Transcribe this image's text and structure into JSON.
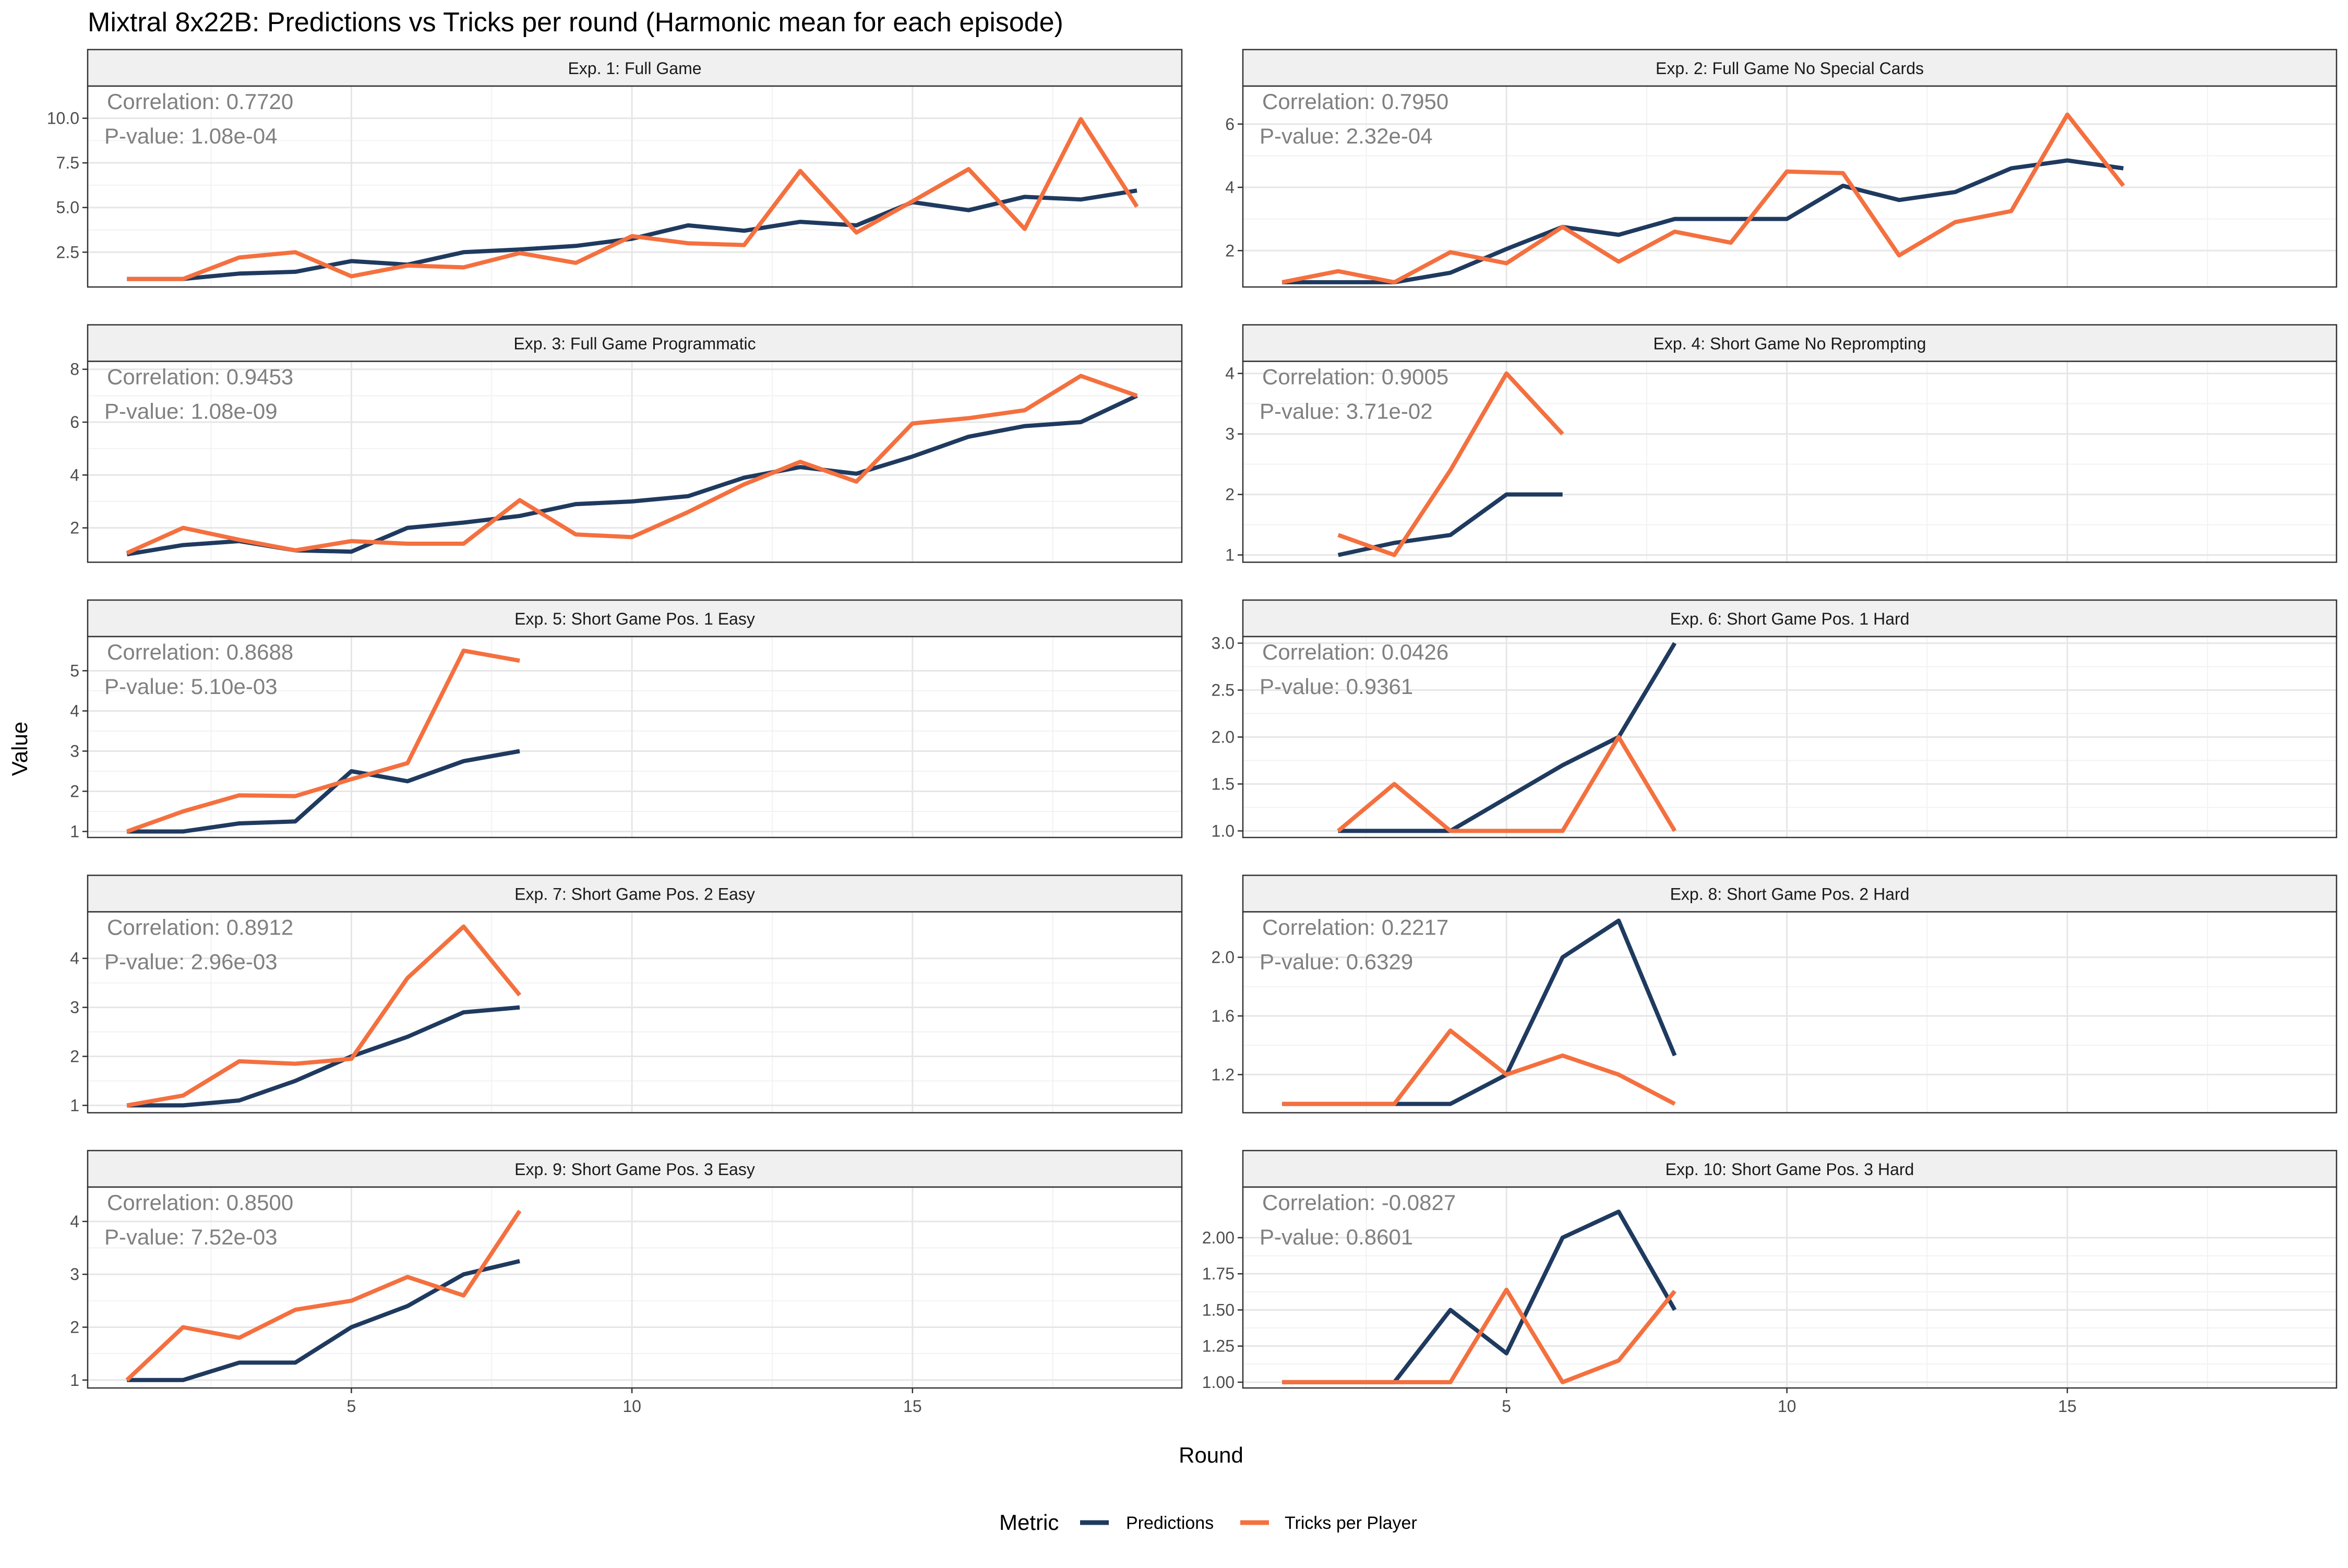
{
  "title": "Mixtral 8x22B: Predictions vs Tricks per round (Harmonic mean for each episode)",
  "x_axis_label": "Round",
  "y_axis_label": "Value",
  "legend": {
    "title": "Metric",
    "items": [
      {
        "name": "Predictions",
        "color": "#1f3a5f"
      },
      {
        "name": "Tricks per Player",
        "color": "#f4703f"
      }
    ]
  },
  "chart_data": {
    "type": "line",
    "title": "Mixtral 8x22B: Predictions vs Tricks per round (Harmonic mean for each episode)",
    "xlabel": "Round",
    "ylabel": "Value",
    "xlim": [
      0.3,
      19.8
    ],
    "x_ticks": [
      5,
      10,
      15
    ],
    "grid": true,
    "legend_position": "bottom",
    "facets": [
      {
        "label": "Exp. 1: Full Game",
        "correlation": "Correlation: 0.7720",
        "p_value": "P-value: 1.08e-04",
        "ylim": [
          0.55,
          11.8
        ],
        "y_ticks": [
          2.5,
          5.0,
          7.5,
          10.0
        ],
        "y_tick_labels": [
          "2.5",
          "5.0",
          "7.5",
          "10.0"
        ],
        "x": [
          1,
          2,
          3,
          4,
          5,
          6,
          7,
          8,
          9,
          10,
          11,
          12,
          13,
          14,
          15,
          16,
          17,
          18,
          19
        ],
        "series": [
          {
            "name": "Predictions",
            "values": [
              1.0,
              1.0,
              1.3,
              1.4,
              2.0,
              1.8,
              2.5,
              2.65,
              2.85,
              3.25,
              4.0,
              3.7,
              4.2,
              4.0,
              5.3,
              4.85,
              5.6,
              5.45,
              5.95
            ]
          },
          {
            "name": "Tricks per Player",
            "values": [
              1.0,
              1.0,
              2.2,
              2.5,
              1.15,
              1.75,
              1.65,
              2.45,
              1.9,
              3.4,
              3.0,
              2.9,
              7.05,
              3.6,
              5.35,
              7.15,
              3.8,
              9.95,
              5.05
            ]
          }
        ]
      },
      {
        "label": "Exp. 2: Full Game No Special Cards",
        "correlation": "Correlation: 0.7950",
        "p_value": "P-value: 2.32e-04",
        "ylim": [
          0.85,
          7.2
        ],
        "y_ticks": [
          2,
          4,
          6
        ],
        "y_tick_labels": [
          "2",
          "4",
          "6"
        ],
        "x": [
          1,
          2,
          3,
          4,
          5,
          6,
          7,
          8,
          9,
          10,
          11,
          12,
          13,
          14,
          15,
          16
        ],
        "series": [
          {
            "name": "Predictions",
            "values": [
              1.0,
              1.0,
              1.0,
              1.3,
              2.05,
              2.75,
              2.5,
              3.0,
              3.0,
              3.0,
              4.05,
              3.6,
              3.85,
              4.6,
              4.85,
              4.6
            ]
          },
          {
            "name": "Tricks per Player",
            "values": [
              1.0,
              1.35,
              1.0,
              1.95,
              1.6,
              2.75,
              1.65,
              2.6,
              2.25,
              4.5,
              4.45,
              1.85,
              2.9,
              3.25,
              6.3,
              4.05
            ]
          }
        ]
      },
      {
        "label": "Exp. 3: Full Game Programmatic",
        "correlation": "Correlation: 0.9453",
        "p_value": "P-value: 1.08e-09",
        "ylim": [
          0.7,
          8.3
        ],
        "y_ticks": [
          2,
          4,
          6,
          8
        ],
        "y_tick_labels": [
          "2",
          "4",
          "6",
          "8"
        ],
        "x": [
          1,
          2,
          3,
          4,
          5,
          6,
          7,
          8,
          9,
          10,
          11,
          12,
          13,
          14,
          15,
          16,
          17,
          18,
          19
        ],
        "series": [
          {
            "name": "Predictions",
            "values": [
              1.0,
              1.35,
              1.5,
              1.15,
              1.1,
              2.0,
              2.2,
              2.45,
              2.9,
              3.0,
              3.2,
              3.9,
              4.3,
              4.05,
              4.7,
              5.45,
              5.85,
              6.0,
              7.0
            ]
          },
          {
            "name": "Tricks per Player",
            "values": [
              1.05,
              2.0,
              1.55,
              1.15,
              1.5,
              1.4,
              1.4,
              3.05,
              1.75,
              1.65,
              2.6,
              3.65,
              4.5,
              3.75,
              5.95,
              6.15,
              6.45,
              7.75,
              7.0
            ]
          }
        ]
      },
      {
        "label": "Exp. 4: Short Game No Reprompting",
        "correlation": "Correlation: 0.9005",
        "p_value": "P-value: 3.71e-02",
        "ylim": [
          0.88,
          4.2
        ],
        "y_ticks": [
          1,
          2,
          3,
          4
        ],
        "y_tick_labels": [
          "1",
          "2",
          "3",
          "4"
        ],
        "x": [
          2,
          3,
          4,
          5,
          6
        ],
        "series": [
          {
            "name": "Predictions",
            "values": [
              1.0,
              1.2,
              1.33,
              2.0,
              2.0
            ]
          },
          {
            "name": "Tricks per Player",
            "values": [
              1.33,
              1.0,
              2.4,
              4.0,
              3.0
            ]
          }
        ]
      },
      {
        "label": "Exp. 5: Short Game Pos. 1 Easy",
        "correlation": "Correlation: 0.8688",
        "p_value": "P-value: 5.10e-03",
        "ylim": [
          0.85,
          5.85
        ],
        "y_ticks": [
          1,
          2,
          3,
          4,
          5
        ],
        "y_tick_labels": [
          "1",
          "2",
          "3",
          "4",
          "5"
        ],
        "x": [
          1,
          2,
          3,
          4,
          5,
          6,
          7,
          8
        ],
        "series": [
          {
            "name": "Predictions",
            "values": [
              1.0,
              1.0,
              1.2,
              1.25,
              2.5,
              2.25,
              2.75,
              3.0
            ]
          },
          {
            "name": "Tricks per Player",
            "values": [
              1.0,
              1.5,
              1.9,
              1.88,
              2.3,
              2.7,
              5.5,
              5.25
            ]
          }
        ]
      },
      {
        "label": "Exp. 6: Short Game Pos. 1 Hard",
        "correlation": "Correlation: 0.0426",
        "p_value": "P-value: 0.9361",
        "ylim": [
          0.93,
          3.07
        ],
        "y_ticks": [
          1.0,
          1.5,
          2.0,
          2.5,
          3.0
        ],
        "y_tick_labels": [
          "1.0",
          "1.5",
          "2.0",
          "2.5",
          "3.0"
        ],
        "x": [
          2,
          3,
          4,
          5,
          6,
          7,
          8
        ],
        "series": [
          {
            "name": "Predictions",
            "values": [
              1.0,
              1.0,
              1.0,
              1.35,
              1.7,
              2.0,
              3.0
            ]
          },
          {
            "name": "Tricks per Player",
            "values": [
              1.0,
              1.5,
              1.0,
              1.0,
              1.0,
              2.0,
              1.0
            ]
          }
        ]
      },
      {
        "label": "Exp. 7: Short Game Pos. 2 Easy",
        "correlation": "Correlation: 0.8912",
        "p_value": "P-value: 2.96e-03",
        "ylim": [
          0.85,
          4.95
        ],
        "y_ticks": [
          1,
          2,
          3,
          4
        ],
        "y_tick_labels": [
          "1",
          "2",
          "3",
          "4"
        ],
        "x": [
          1,
          2,
          3,
          4,
          5,
          6,
          7,
          8
        ],
        "series": [
          {
            "name": "Predictions",
            "values": [
              1.0,
              1.0,
              1.1,
              1.5,
              2.0,
              2.4,
              2.9,
              3.0
            ]
          },
          {
            "name": "Tricks per Player",
            "values": [
              1.0,
              1.2,
              1.9,
              1.85,
              1.95,
              3.6,
              4.65,
              3.25
            ]
          }
        ]
      },
      {
        "label": "Exp. 8: Short Game Pos. 2 Hard",
        "correlation": "Correlation: 0.2217",
        "p_value": "P-value: 0.6329",
        "ylim": [
          0.94,
          2.31
        ],
        "y_ticks": [
          1.2,
          1.6,
          2.0
        ],
        "y_tick_labels": [
          "1.2",
          "1.6",
          "2.0"
        ],
        "x": [
          1,
          2,
          3,
          4,
          5,
          6,
          7,
          8
        ],
        "series": [
          {
            "name": "Predictions",
            "values": [
              1.0,
              1.0,
              1.0,
              1.0,
              1.2,
              2.0,
              2.25,
              1.33
            ]
          },
          {
            "name": "Tricks per Player",
            "values": [
              1.0,
              1.0,
              1.0,
              1.5,
              1.2,
              1.33,
              1.2,
              1.0
            ]
          }
        ]
      },
      {
        "label": "Exp. 9: Short Game Pos. 3 Easy",
        "correlation": "Correlation: 0.8500",
        "p_value": "P-value: 7.52e-03",
        "ylim": [
          0.85,
          4.65
        ],
        "y_ticks": [
          1,
          2,
          3,
          4
        ],
        "y_tick_labels": [
          "1",
          "2",
          "3",
          "4"
        ],
        "x": [
          1,
          2,
          3,
          4,
          5,
          6,
          7,
          8
        ],
        "series": [
          {
            "name": "Predictions",
            "values": [
              1.0,
              1.0,
              1.33,
              1.33,
              2.0,
              2.4,
              3.0,
              3.25
            ]
          },
          {
            "name": "Tricks per Player",
            "values": [
              1.0,
              2.0,
              1.8,
              2.33,
              2.5,
              2.95,
              2.6,
              4.2
            ]
          }
        ]
      },
      {
        "label": "Exp. 10: Short Game Pos. 3 Hard",
        "correlation": "Correlation: -0.0827",
        "p_value": "P-value: 0.8601",
        "ylim": [
          0.96,
          2.35
        ],
        "y_ticks": [
          1.0,
          1.25,
          1.5,
          1.75,
          2.0
        ],
        "y_tick_labels": [
          "1.00",
          "1.25",
          "1.50",
          "1.75",
          "2.00"
        ],
        "x": [
          1,
          2,
          3,
          4,
          5,
          6,
          7,
          8
        ],
        "series": [
          {
            "name": "Predictions",
            "values": [
              1.0,
              1.0,
              1.0,
              1.5,
              1.2,
              2.0,
              2.18,
              1.5
            ]
          },
          {
            "name": "Tricks per Player",
            "values": [
              1.0,
              1.0,
              1.0,
              1.0,
              1.64,
              1.0,
              1.15,
              1.63
            ]
          }
        ]
      }
    ]
  }
}
